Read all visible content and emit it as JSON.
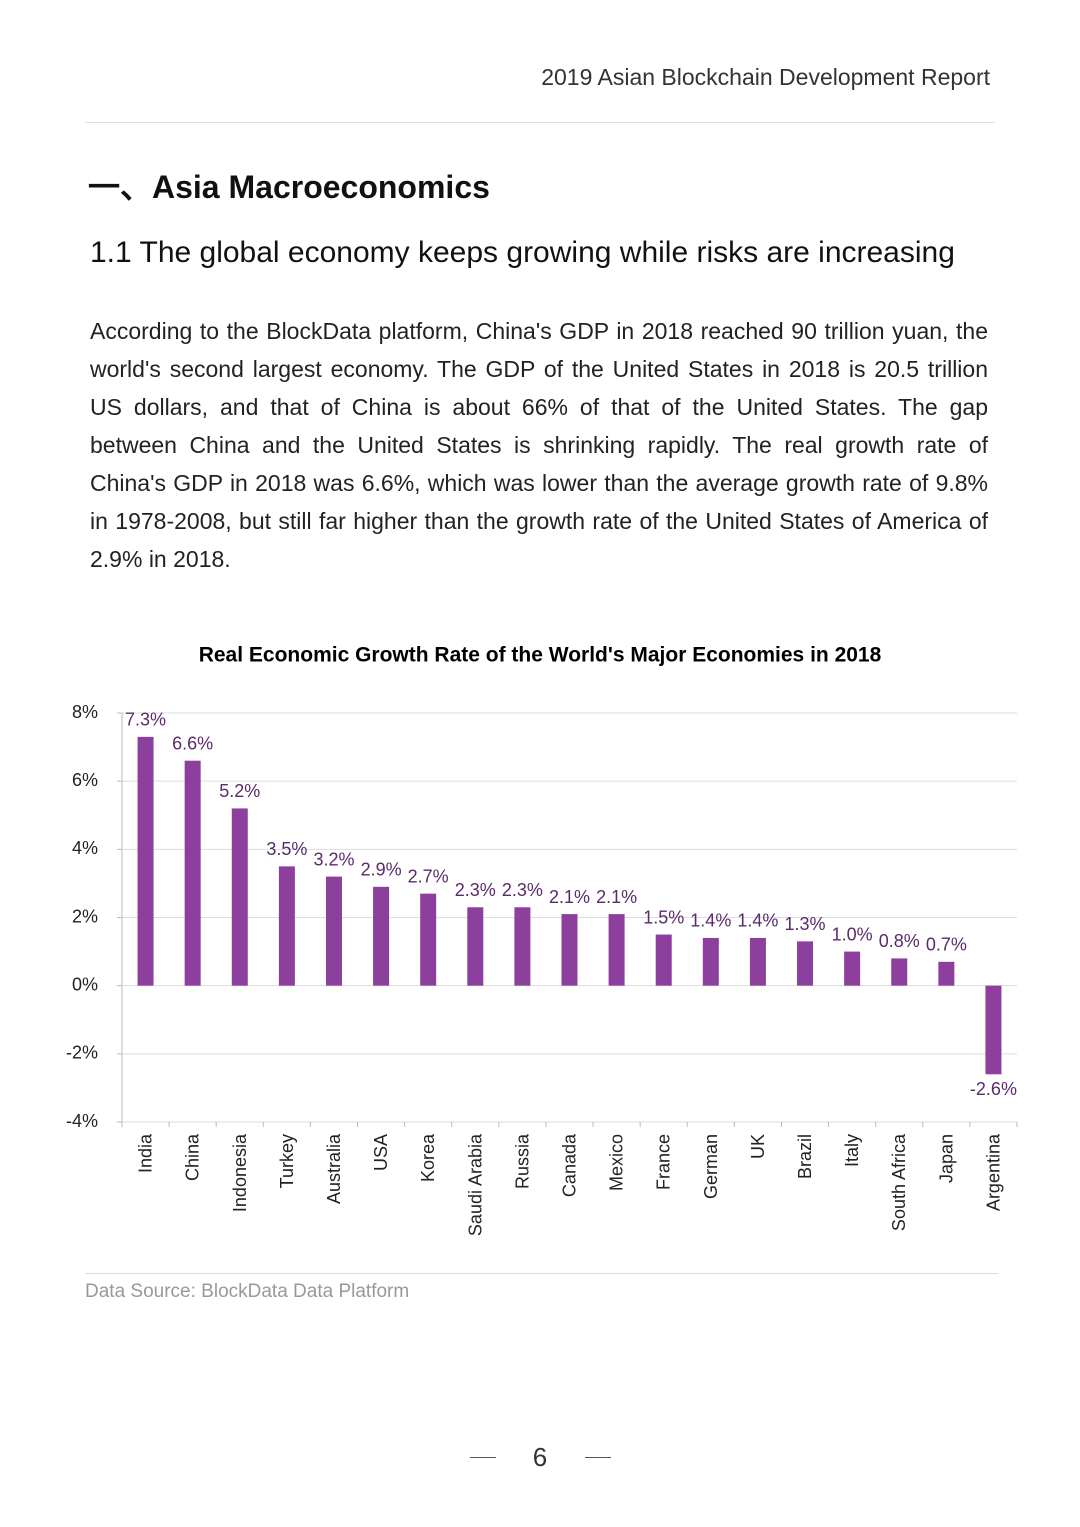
{
  "header": {
    "title": "2019 Asian Blockchain Development Report"
  },
  "section": {
    "title": "一、Asia Macroeconomics",
    "subtitle": "1.1 The global economy keeps growing while risks are increasing",
    "paragraph": "According to the BlockData platform, China's GDP in 2018 reached 90 trillion yuan, the world's second largest economy. The GDP of the United States in 2018 is 20.5 trillion US dollars, and that of China is about 66% of that of the United States. The gap between China and the United States is shrinking rapidly. The real growth rate of China's GDP in 2018 was 6.6%, which was lower than the average growth rate of 9.8% in 1978-2008, but still far higher than the growth rate of the United States of America of 2.9% in 2018."
  },
  "chart_data": {
    "type": "bar",
    "title": "Real Economic Growth Rate of the World's Major Economies in 2018",
    "categories": [
      "India",
      "China",
      "Indonesia",
      "Turkey",
      "Australia",
      "USA",
      "Korea",
      "Saudi Arabia",
      "Russia",
      "Canada",
      "Mexico",
      "France",
      "German",
      "UK",
      "Brazil",
      "Italy",
      "South Africa",
      "Japan",
      "Argentina"
    ],
    "values": [
      7.3,
      6.6,
      5.2,
      3.5,
      3.2,
      2.9,
      2.7,
      2.3,
      2.3,
      2.1,
      2.1,
      1.5,
      1.4,
      1.4,
      1.3,
      1.0,
      0.8,
      0.7,
      -2.6
    ],
    "value_labels": [
      "7.3%",
      "6.6%",
      "5.2%",
      "3.5%",
      "3.2%",
      "2.9%",
      "2.7%",
      "2.3%",
      "2.3%",
      "2.1%",
      "2.1%",
      "1.5%",
      "1.4%",
      "1.4%",
      "1.3%",
      "1.0%",
      "0.8%",
      "0.7%",
      "-2.6%"
    ],
    "color": "#8c3f9d",
    "ylim": [
      -4,
      8
    ],
    "yticks": [
      {
        "value": -4,
        "label": "-4%"
      },
      {
        "value": -2,
        "label": "-2%"
      },
      {
        "value": 0,
        "label": "0%"
      },
      {
        "value": 2,
        "label": "2%"
      },
      {
        "value": 4,
        "label": "4%"
      },
      {
        "value": 6,
        "label": "6%"
      },
      {
        "value": 8,
        "label": "8%"
      }
    ],
    "grid": true
  },
  "source": "Data Source: BlockData Data Platform",
  "page_number": "6"
}
